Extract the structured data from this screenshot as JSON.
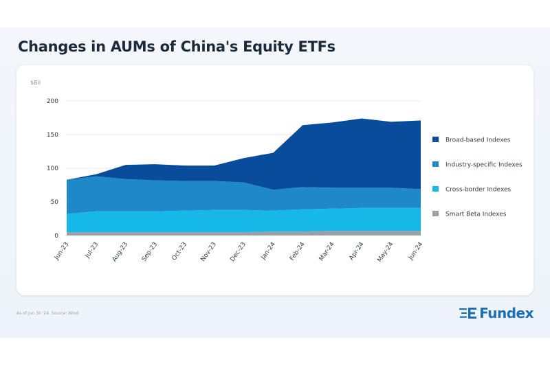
{
  "header": {
    "title": "Changes in AUMs of China's Equity ETFs"
  },
  "footer": {
    "note": "As of Jun 30 '24. Source: Wind",
    "brand": "Fundex"
  },
  "colors": {
    "broad": "#0a4c9c",
    "industry": "#1e88c8",
    "cross": "#15b8e6",
    "smart": "#9aa0a6",
    "brand": "#1b6fb4"
  },
  "chart_data": {
    "type": "area",
    "stacked": true,
    "unit_label": "$Bil",
    "categories": [
      "Jun-23",
      "Jul-23",
      "Aug-23",
      "Sep-23",
      "Oct-23",
      "Nov-23",
      "Dec-23",
      "Jan-24",
      "Feb-24",
      "Mar-24",
      "Apr-24",
      "May-24",
      "Jun-24"
    ],
    "ylim": [
      0,
      200
    ],
    "yticks": [
      0,
      50,
      100,
      150,
      200
    ],
    "grid": true,
    "legend_position": "right",
    "series": [
      {
        "key": "smart",
        "name": "Smart Beta Indexes",
        "values": [
          5,
          5,
          5,
          5,
          5,
          5,
          5,
          6,
          6,
          7,
          7,
          7,
          7
        ]
      },
      {
        "key": "cross",
        "name": "Cross-border Indexes",
        "values": [
          27,
          31,
          31,
          31,
          32,
          33,
          33,
          31,
          33,
          33,
          34,
          34,
          34
        ]
      },
      {
        "key": "industry",
        "name": "Industry-specific Indexes",
        "values": [
          51,
          52,
          48,
          46,
          44,
          43,
          41,
          31,
          33,
          31,
          30,
          30,
          28
        ]
      },
      {
        "key": "broad",
        "name": "Broad-based Indexes",
        "values": [
          0,
          3,
          21,
          24,
          23,
          23,
          36,
          55,
          92,
          97,
          103,
          98,
          102
        ]
      }
    ],
    "legend_order": [
      "broad",
      "industry",
      "cross",
      "smart"
    ]
  }
}
